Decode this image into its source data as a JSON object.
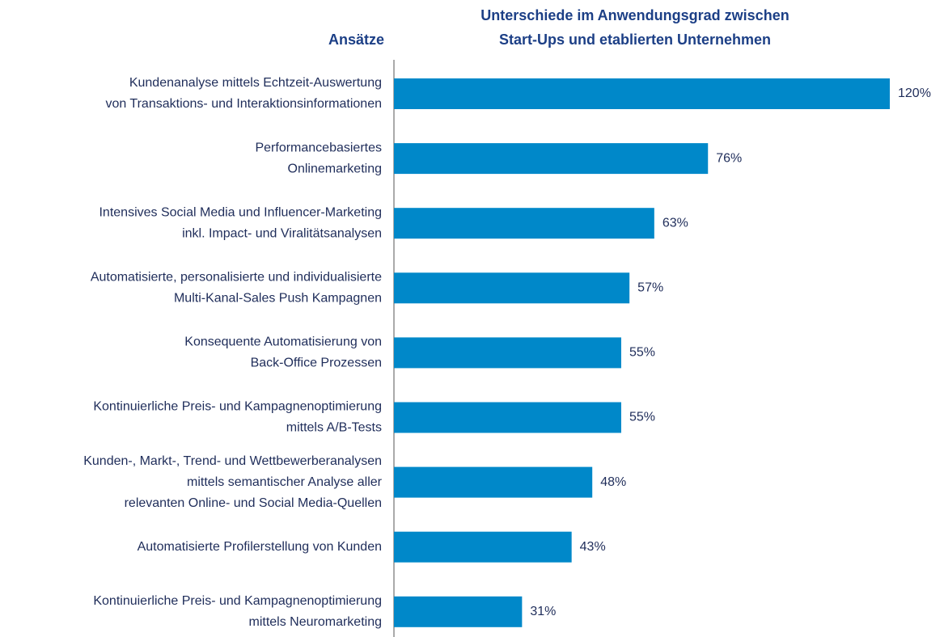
{
  "chart_data": {
    "type": "barh",
    "title": [
      "Unterschiede im Anwendungsgrad zwischen",
      "Start-Ups und etablierten Unternehmen"
    ],
    "category_label": "Ansätze",
    "categories": [
      [
        "Kundenanalyse mittels Echtzeit-Auswertung",
        "von Transaktions- und Interaktionsinformationen"
      ],
      [
        "Performancebasiertes",
        "Onlinemarketing"
      ],
      [
        "Intensives Social Media und Influencer-Marketing",
        "inkl. Impact- und Viralitätsanalysen"
      ],
      [
        "Automatisierte, personalisierte und individualisierte",
        "Multi-Kanal-Sales Push Kampagnen"
      ],
      [
        "Konsequente Automatisierung von",
        "Back-Office Prozessen"
      ],
      [
        "Kontinuierliche Preis- und Kampagnenoptimierung",
        "mittels A/B-Tests"
      ],
      [
        "Kunden-, Markt-, Trend- und Wettbewerberanalysen",
        "mittels semantischer Analyse aller",
        "relevanten Online- und Social Media-Quellen"
      ],
      [
        "Automatisierte Profilerstellung von Kunden"
      ],
      [
        "Kontinuierliche Preis- und Kampagnenoptimierung",
        "mittels Neuromarketing"
      ]
    ],
    "values": [
      120,
      76,
      63,
      57,
      55,
      55,
      48,
      43,
      31
    ],
    "value_labels": [
      "120%",
      "76%",
      "63%",
      "57%",
      "55%",
      "55%",
      "48%",
      "43%",
      "31%"
    ],
    "color": "#0088c9"
  }
}
